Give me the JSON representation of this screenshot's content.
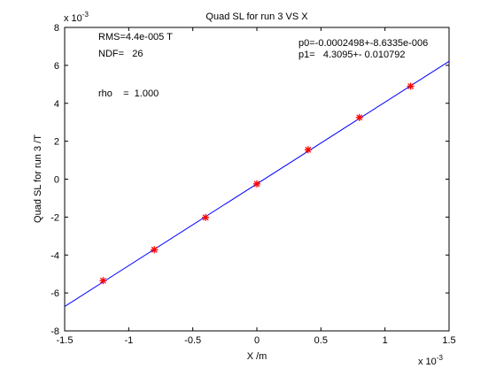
{
  "chart_data": {
    "type": "scatter",
    "title": "Quad SL for run 3 VS X",
    "xlabel": "X /m",
    "ylabel": "Quad SL for run 3 /T",
    "x_exponent_base": "x 10",
    "x_exponent_power": "-3",
    "y_exponent_base": "x 10",
    "y_exponent_power": "-3",
    "xlim": [
      -1.5,
      1.5
    ],
    "ylim": [
      -8,
      8
    ],
    "x_ticks": [
      -1.5,
      -1,
      -0.5,
      0,
      0.5,
      1,
      1.5
    ],
    "x_tick_labels": [
      "-1.5",
      "-1",
      "-0.5",
      "0",
      "0.5",
      "1",
      "1.5"
    ],
    "y_ticks": [
      -8,
      -6,
      -4,
      -2,
      0,
      2,
      4,
      6,
      8
    ],
    "y_tick_labels": [
      "-8",
      "-6",
      "-4",
      "-2",
      "0",
      "2",
      "4",
      "6",
      "8"
    ],
    "grid": false,
    "points": {
      "color": "#ff0000",
      "marker": "asterisk",
      "x": [
        -1.2,
        -0.8,
        -0.4,
        0.0,
        0.4,
        0.8,
        1.2
      ],
      "y": [
        -5.35,
        -3.72,
        -2.02,
        -0.25,
        1.55,
        3.25,
        4.9
      ]
    },
    "fit_line": {
      "color": "#0000ff",
      "intercept": -0.2498,
      "slope": 4.3095
    },
    "annotations": {
      "rms": "RMS=4.4e-005 T",
      "ndf": "NDF=   26",
      "rho": "rho    =  1.000",
      "p0": "p0=-0.0002498+-8.6335e-006",
      "p1": "p1=   4.3095+- 0.010792"
    }
  }
}
